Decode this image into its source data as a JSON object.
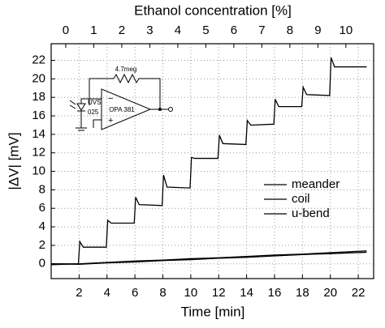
{
  "chart_data": {
    "type": "line",
    "title": "Ethanol concentration [%]",
    "xlabel": "Time [min]",
    "ylabel": "|ΔV| [mV]",
    "xlim": [
      0,
      23.1
    ],
    "xticks": [
      2,
      4,
      6,
      8,
      10,
      12,
      14,
      16,
      18,
      20,
      22
    ],
    "ylim": [
      -1.6,
      23.8
    ],
    "yticks": [
      0,
      2,
      4,
      6,
      8,
      10,
      12,
      14,
      16,
      18,
      20,
      22
    ],
    "x2lim": [
      -0.52,
      10.99
    ],
    "x2ticks": [
      0,
      1,
      2,
      3,
      4,
      5,
      6,
      7,
      8,
      9,
      10
    ],
    "grid": true,
    "legend": "right",
    "series": [
      {
        "name": "meander",
        "color": "#000000",
        "x": [
          0,
          1.95,
          2.05,
          2.3,
          3.95,
          4.05,
          4.3,
          5.95,
          6.05,
          6.3,
          7.95,
          8.05,
          8.3,
          9.95,
          10.05,
          10.3,
          11.95,
          12.05,
          12.3,
          13.95,
          14.05,
          14.3,
          15.95,
          16.05,
          16.3,
          17.95,
          18.05,
          18.3,
          19.95,
          20.05,
          20.3,
          22.6
        ],
        "values": [
          0,
          0,
          2.4,
          1.8,
          1.8,
          4.7,
          4.4,
          4.4,
          7.2,
          6.4,
          6.3,
          9.6,
          8.3,
          8.2,
          11.5,
          11.4,
          11.4,
          13.9,
          13.0,
          12.9,
          15.5,
          15.0,
          15.1,
          17.8,
          17.0,
          17.0,
          19.1,
          18.3,
          18.2,
          22.3,
          21.3,
          21.3
        ]
      },
      {
        "name": "coil",
        "color": "#000000",
        "x": [
          0,
          2,
          4,
          6,
          8,
          10,
          12,
          14,
          16,
          18,
          20,
          22.6
        ],
        "values": [
          -0.1,
          0,
          0.15,
          0.3,
          0.4,
          0.55,
          0.65,
          0.8,
          0.95,
          1.05,
          1.2,
          1.4
        ]
      },
      {
        "name": "u-bend",
        "color": "#000000",
        "x": [
          0,
          2,
          4,
          6,
          8,
          10,
          12,
          14,
          16,
          18,
          20,
          22.6
        ],
        "values": [
          0,
          -0.05,
          0.1,
          0.2,
          0.35,
          0.45,
          0.6,
          0.7,
          0.85,
          1.0,
          1.1,
          1.25
        ]
      }
    ],
    "annotations": [
      "4.7meg",
      "UVS",
      "025",
      "OPA 381",
      "−",
      "+"
    ]
  }
}
